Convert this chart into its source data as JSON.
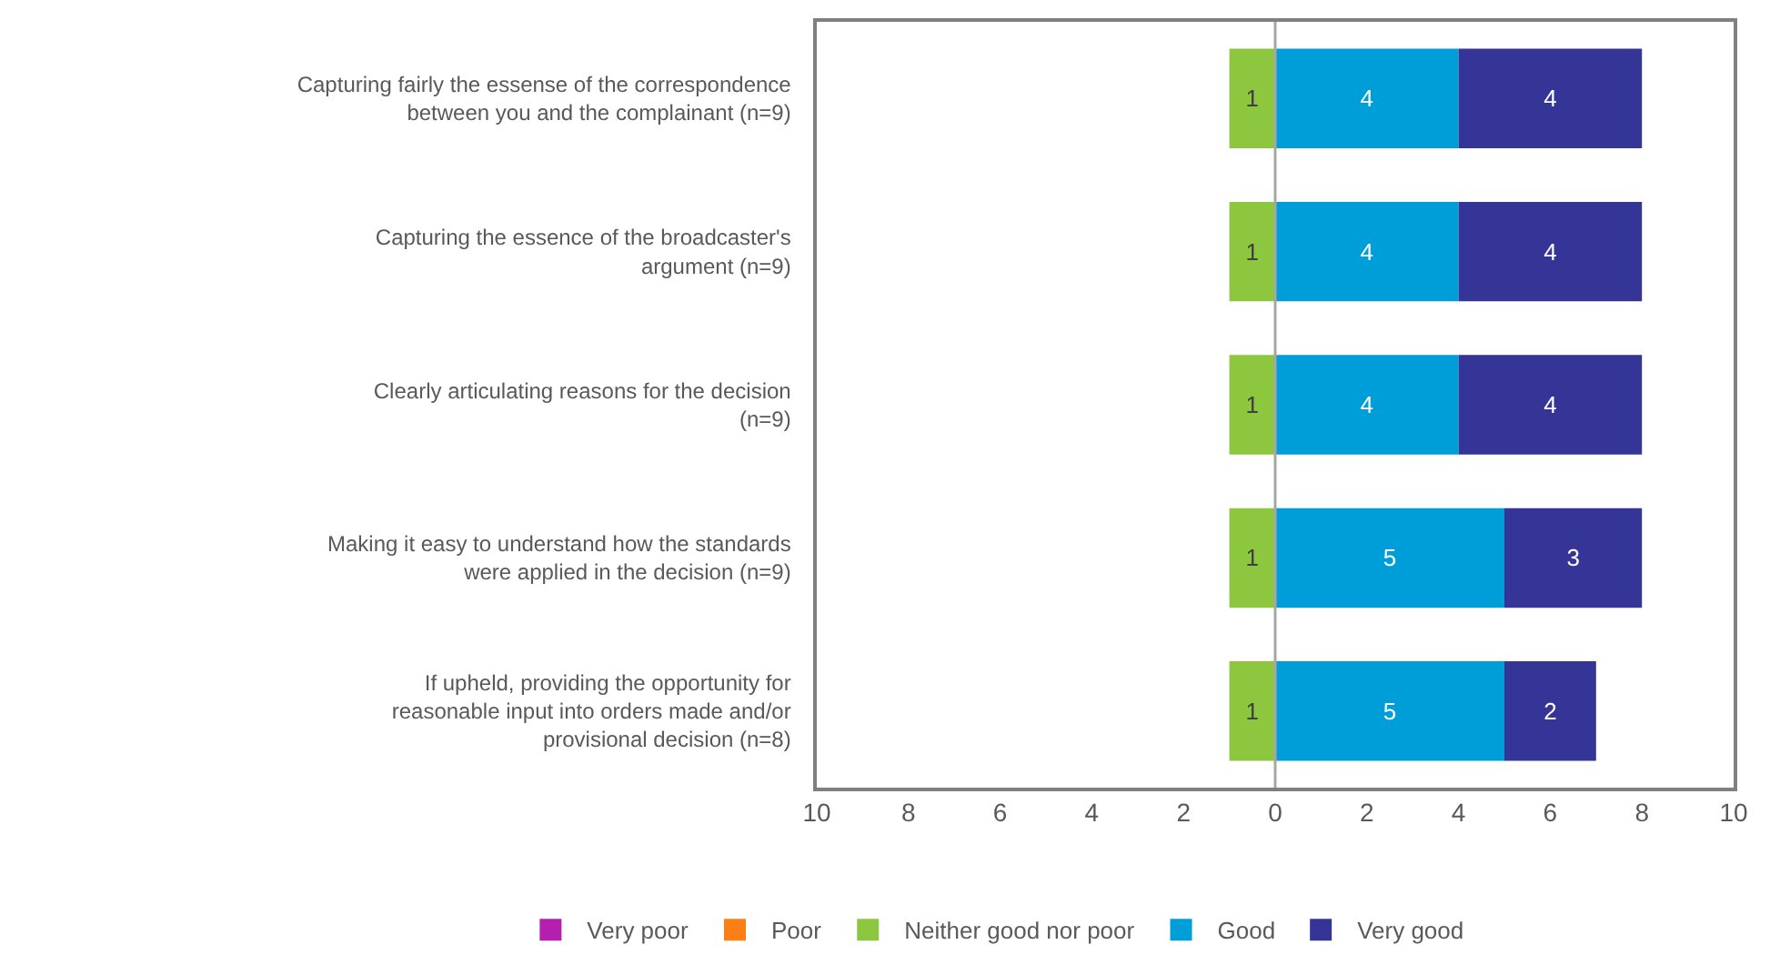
{
  "chart_data": {
    "type": "bar",
    "orientation": "horizontal",
    "categories": [
      "Capturing fairly the essense of the correspondence between you and the complainant (n=9)",
      "Capturing the essence of the broadcaster's argument (n=9)",
      "Clearly articulating reasons for the decision (n=9)",
      "Making it easy to understand how the standards were applied in the decision (n=9)",
      "If upheld, providing the opportunity for reasonable input into orders made and/or provisional decision (n=8)"
    ],
    "series": [
      {
        "name": "Very poor",
        "color": "#b51fb0",
        "values": [
          null,
          null,
          null,
          null,
          null
        ]
      },
      {
        "name": "Poor",
        "color": "#fb7f16",
        "values": [
          null,
          null,
          null,
          null,
          null
        ]
      },
      {
        "name": "Neither good nor poor",
        "color": "#8dc63f",
        "values": [
          1,
          1,
          1,
          1,
          1
        ],
        "base": [
          -1,
          -1,
          -1,
          -1,
          -1
        ]
      },
      {
        "name": "Good",
        "color": "#009ed8",
        "values": [
          4,
          4,
          4,
          5,
          5
        ],
        "base": [
          0,
          0,
          0,
          0,
          0
        ]
      },
      {
        "name": "Very good",
        "color": "#353597",
        "values": [
          4,
          4,
          4,
          3,
          2
        ],
        "base": [
          4,
          4,
          4,
          5,
          5
        ]
      }
    ],
    "xlim": [
      -10,
      10
    ],
    "xticks": [
      {
        "value": -10,
        "label": "10"
      },
      {
        "value": -8,
        "label": "8"
      },
      {
        "value": -6,
        "label": "6"
      },
      {
        "value": -4,
        "label": "4"
      },
      {
        "value": -2,
        "label": "2"
      },
      0,
      2,
      4,
      6,
      8,
      10
    ],
    "ref_lines": [
      {
        "axis": "x",
        "value": 0,
        "label": null,
        "color": "#a6a6a6"
      }
    ],
    "data_labels": true,
    "legend": "bottom"
  }
}
